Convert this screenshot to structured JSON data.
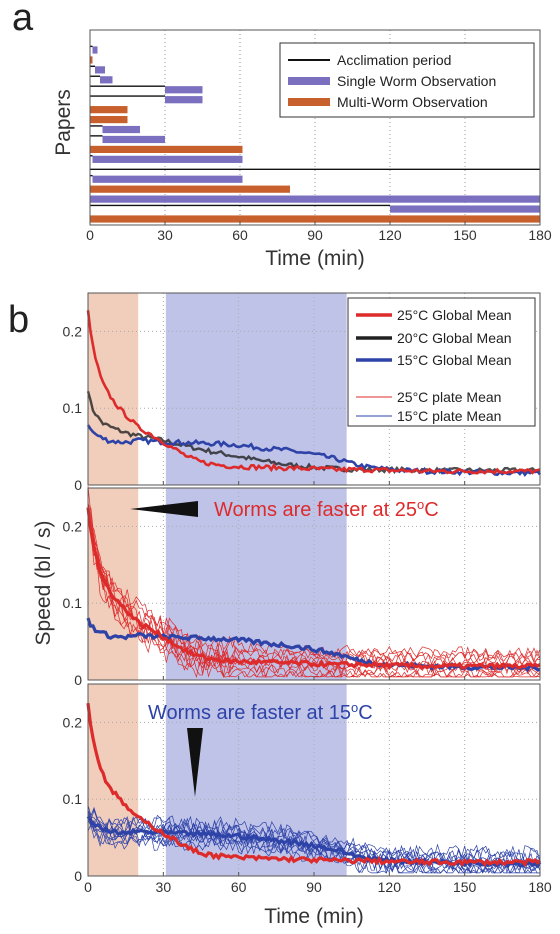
{
  "chart_data": [
    {
      "panel": "a",
      "type": "bar",
      "orientation": "horizontal",
      "xlabel": "Time (min)",
      "ylabel": "Papers",
      "xlim": [
        0,
        180
      ],
      "xticks": [
        0,
        30,
        60,
        90,
        120,
        150,
        180
      ],
      "grid": "vertical dotted",
      "legend_position": "top-right",
      "legend": [
        {
          "name": "Acclimation period",
          "color": "#111111",
          "style": "line"
        },
        {
          "name": "Single Worm Observation",
          "color": "#7b6fbf",
          "style": "bar"
        },
        {
          "name": "Multi-Worm Observation",
          "color": "#c8602e",
          "style": "bar"
        }
      ],
      "rows": [
        {
          "acclimation": [
            0,
            1
          ],
          "observation": [
            1,
            3
          ],
          "kind": "single"
        },
        {
          "acclimation": [
            0,
            0
          ],
          "observation": [
            0,
            1
          ],
          "kind": "multi"
        },
        {
          "acclimation": [
            0,
            2
          ],
          "observation": [
            2,
            6
          ],
          "kind": "single"
        },
        {
          "acclimation": [
            0,
            4
          ],
          "observation": [
            4,
            9
          ],
          "kind": "single"
        },
        {
          "acclimation": [
            0,
            30
          ],
          "observation": [
            30,
            45
          ],
          "kind": "single"
        },
        {
          "acclimation": [
            0,
            30
          ],
          "observation": [
            30,
            45
          ],
          "kind": "single"
        },
        {
          "acclimation": [
            0,
            0
          ],
          "observation": [
            0,
            15
          ],
          "kind": "multi"
        },
        {
          "acclimation": [
            0,
            0
          ],
          "observation": [
            0,
            15
          ],
          "kind": "multi"
        },
        {
          "acclimation": [
            0,
            5
          ],
          "observation": [
            5,
            20
          ],
          "kind": "single"
        },
        {
          "acclimation": [
            0,
            5
          ],
          "observation": [
            5,
            30
          ],
          "kind": "single"
        },
        {
          "acclimation": [
            0,
            0
          ],
          "observation": [
            0,
            61
          ],
          "kind": "multi"
        },
        {
          "acclimation": [
            0,
            1
          ],
          "observation": [
            1,
            61
          ],
          "kind": "single"
        },
        {
          "acclimation": [
            0,
            180
          ],
          "observation": null,
          "kind": "single"
        },
        {
          "acclimation": [
            0,
            1
          ],
          "observation": [
            1,
            61
          ],
          "kind": "single"
        },
        {
          "acclimation": [
            0,
            0
          ],
          "observation": [
            0,
            80
          ],
          "kind": "multi"
        },
        {
          "acclimation": [
            0,
            0
          ],
          "observation": [
            0,
            180
          ],
          "kind": "single"
        },
        {
          "acclimation": [
            0,
            120
          ],
          "observation": [
            120,
            180
          ],
          "kind": "single"
        },
        {
          "acclimation": [
            0,
            0
          ],
          "observation": [
            0,
            180
          ],
          "kind": "multi"
        }
      ]
    },
    {
      "panel": "b",
      "type": "line",
      "xlabel": "Time (min)",
      "ylabel": "Speed (bl / s)",
      "xlim": [
        0,
        180
      ],
      "ylim": [
        0,
        0.25
      ],
      "xticks": [
        0,
        30,
        60,
        90,
        120,
        150,
        180
      ],
      "yticks": [
        0,
        0.1,
        0.2
      ],
      "shaded_regions": [
        {
          "x": [
            0,
            20
          ],
          "color": "#f0c8b4"
        },
        {
          "x": [
            31,
            103
          ],
          "color": "#b8bce6"
        }
      ],
      "legend_position": "top-right",
      "legend": [
        {
          "name": "25°C Global Mean",
          "color": "#dd2b2b",
          "style": "thick"
        },
        {
          "name": "20°C Global Mean",
          "color": "#222222",
          "style": "thick"
        },
        {
          "name": "15°C Global Mean",
          "color": "#2e43a8",
          "style": "thick"
        },
        {
          "name": "25°C plate Mean",
          "color": "#dd2b2b",
          "style": "thin"
        },
        {
          "name": "15°C plate Mean",
          "color": "#2e43a8",
          "style": "thin"
        }
      ],
      "series": [
        {
          "name": "25°C Global Mean",
          "x": [
            0,
            1,
            2,
            3,
            5,
            7,
            10,
            13,
            16,
            20,
            24,
            28,
            32,
            36,
            40,
            45,
            50,
            55,
            60,
            70,
            80,
            90,
            100,
            110,
            120,
            135,
            150,
            165,
            180
          ],
          "y": [
            0.225,
            0.2,
            0.18,
            0.165,
            0.14,
            0.125,
            0.11,
            0.098,
            0.088,
            0.075,
            0.068,
            0.06,
            0.052,
            0.044,
            0.036,
            0.03,
            0.027,
            0.025,
            0.024,
            0.023,
            0.022,
            0.021,
            0.02,
            0.02,
            0.019,
            0.018,
            0.018,
            0.018,
            0.018
          ]
        },
        {
          "name": "20°C Global Mean",
          "x": [
            0,
            1,
            2,
            4,
            6,
            10,
            15,
            20,
            25,
            30,
            40,
            50,
            60,
            70,
            80,
            90,
            100,
            110,
            120,
            135,
            150,
            165,
            180
          ],
          "y": [
            0.125,
            0.108,
            0.098,
            0.088,
            0.08,
            0.074,
            0.068,
            0.064,
            0.061,
            0.058,
            0.05,
            0.043,
            0.037,
            0.031,
            0.026,
            0.023,
            0.021,
            0.02,
            0.02,
            0.019,
            0.019,
            0.019,
            0.019
          ]
        },
        {
          "name": "15°C Global Mean",
          "x": [
            0,
            1,
            3,
            5,
            8,
            12,
            16,
            20,
            25,
            30,
            40,
            50,
            60,
            70,
            80,
            90,
            100,
            105,
            110,
            120,
            135,
            150,
            165,
            180
          ],
          "y": [
            0.08,
            0.072,
            0.066,
            0.062,
            0.058,
            0.056,
            0.056,
            0.058,
            0.057,
            0.056,
            0.055,
            0.054,
            0.052,
            0.048,
            0.045,
            0.04,
            0.033,
            0.028,
            0.024,
            0.02,
            0.018,
            0.017,
            0.016,
            0.016
          ]
        }
      ],
      "annotations": [
        {
          "text": "Worms are faster at 25oC",
          "color": "#dd2b2b"
        },
        {
          "text": "Worms are faster at 15oC",
          "color": "#2e43a8"
        }
      ]
    }
  ]
}
